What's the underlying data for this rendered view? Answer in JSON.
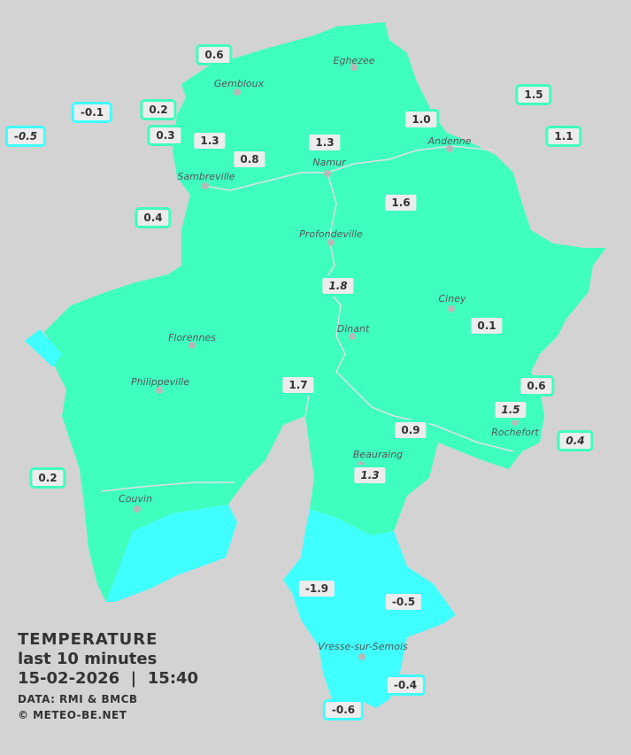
{
  "colors": {
    "background": "#d3d3d3",
    "warm_zone": "#3fffbf",
    "cold_zone": "#40ffff"
  },
  "legend": {
    "title": "TEMPERATURE",
    "period": "last 10 minutes",
    "datetime": "15-02-2026  |  15:40",
    "source": "DATA: RMI & BMCB",
    "copyright": "© METEO-BE.NET"
  },
  "cities": [
    "Eghezee",
    "Gembloux",
    "Andenne",
    "Namur",
    "Sambreville",
    "Profondeville",
    "Ciney",
    "Dinant",
    "Florennes",
    "Philippeville",
    "Rochefort",
    "Beauraing",
    "Couvin",
    "Vresse-sur-Semois"
  ],
  "stations": [
    {
      "value": "0.6",
      "zone": "warm"
    },
    {
      "value": "-0.1",
      "zone": "cold"
    },
    {
      "value": "0.2",
      "zone": "warm"
    },
    {
      "value": "-0.5",
      "zone": "cold",
      "italic": true
    },
    {
      "value": "0.3",
      "zone": "warm"
    },
    {
      "value": "1.3",
      "zone": "warm"
    },
    {
      "value": "0.8",
      "zone": "warm"
    },
    {
      "value": "1.3",
      "zone": "warm"
    },
    {
      "value": "1.0",
      "zone": "warm"
    },
    {
      "value": "1.5",
      "zone": "warm"
    },
    {
      "value": "1.1",
      "zone": "warm"
    },
    {
      "value": "0.4",
      "zone": "warm"
    },
    {
      "value": "1.6",
      "zone": "warm"
    },
    {
      "value": "1.8",
      "zone": "warm",
      "italic": true
    },
    {
      "value": "0.1",
      "zone": "warm"
    },
    {
      "value": "1.7",
      "zone": "warm"
    },
    {
      "value": "0.6",
      "zone": "warm"
    },
    {
      "value": "1.5",
      "zone": "warm",
      "italic": true
    },
    {
      "value": "0.4",
      "zone": "warm",
      "italic": true
    },
    {
      "value": "0.9",
      "zone": "warm"
    },
    {
      "value": "1.3",
      "zone": "warm",
      "italic": true
    },
    {
      "value": "0.2",
      "zone": "warm"
    },
    {
      "value": "-1.9",
      "zone": "cold"
    },
    {
      "value": "-0.5",
      "zone": "cold"
    },
    {
      "value": "-0.4",
      "zone": "cold"
    },
    {
      "value": "-0.6",
      "zone": "cold"
    }
  ]
}
